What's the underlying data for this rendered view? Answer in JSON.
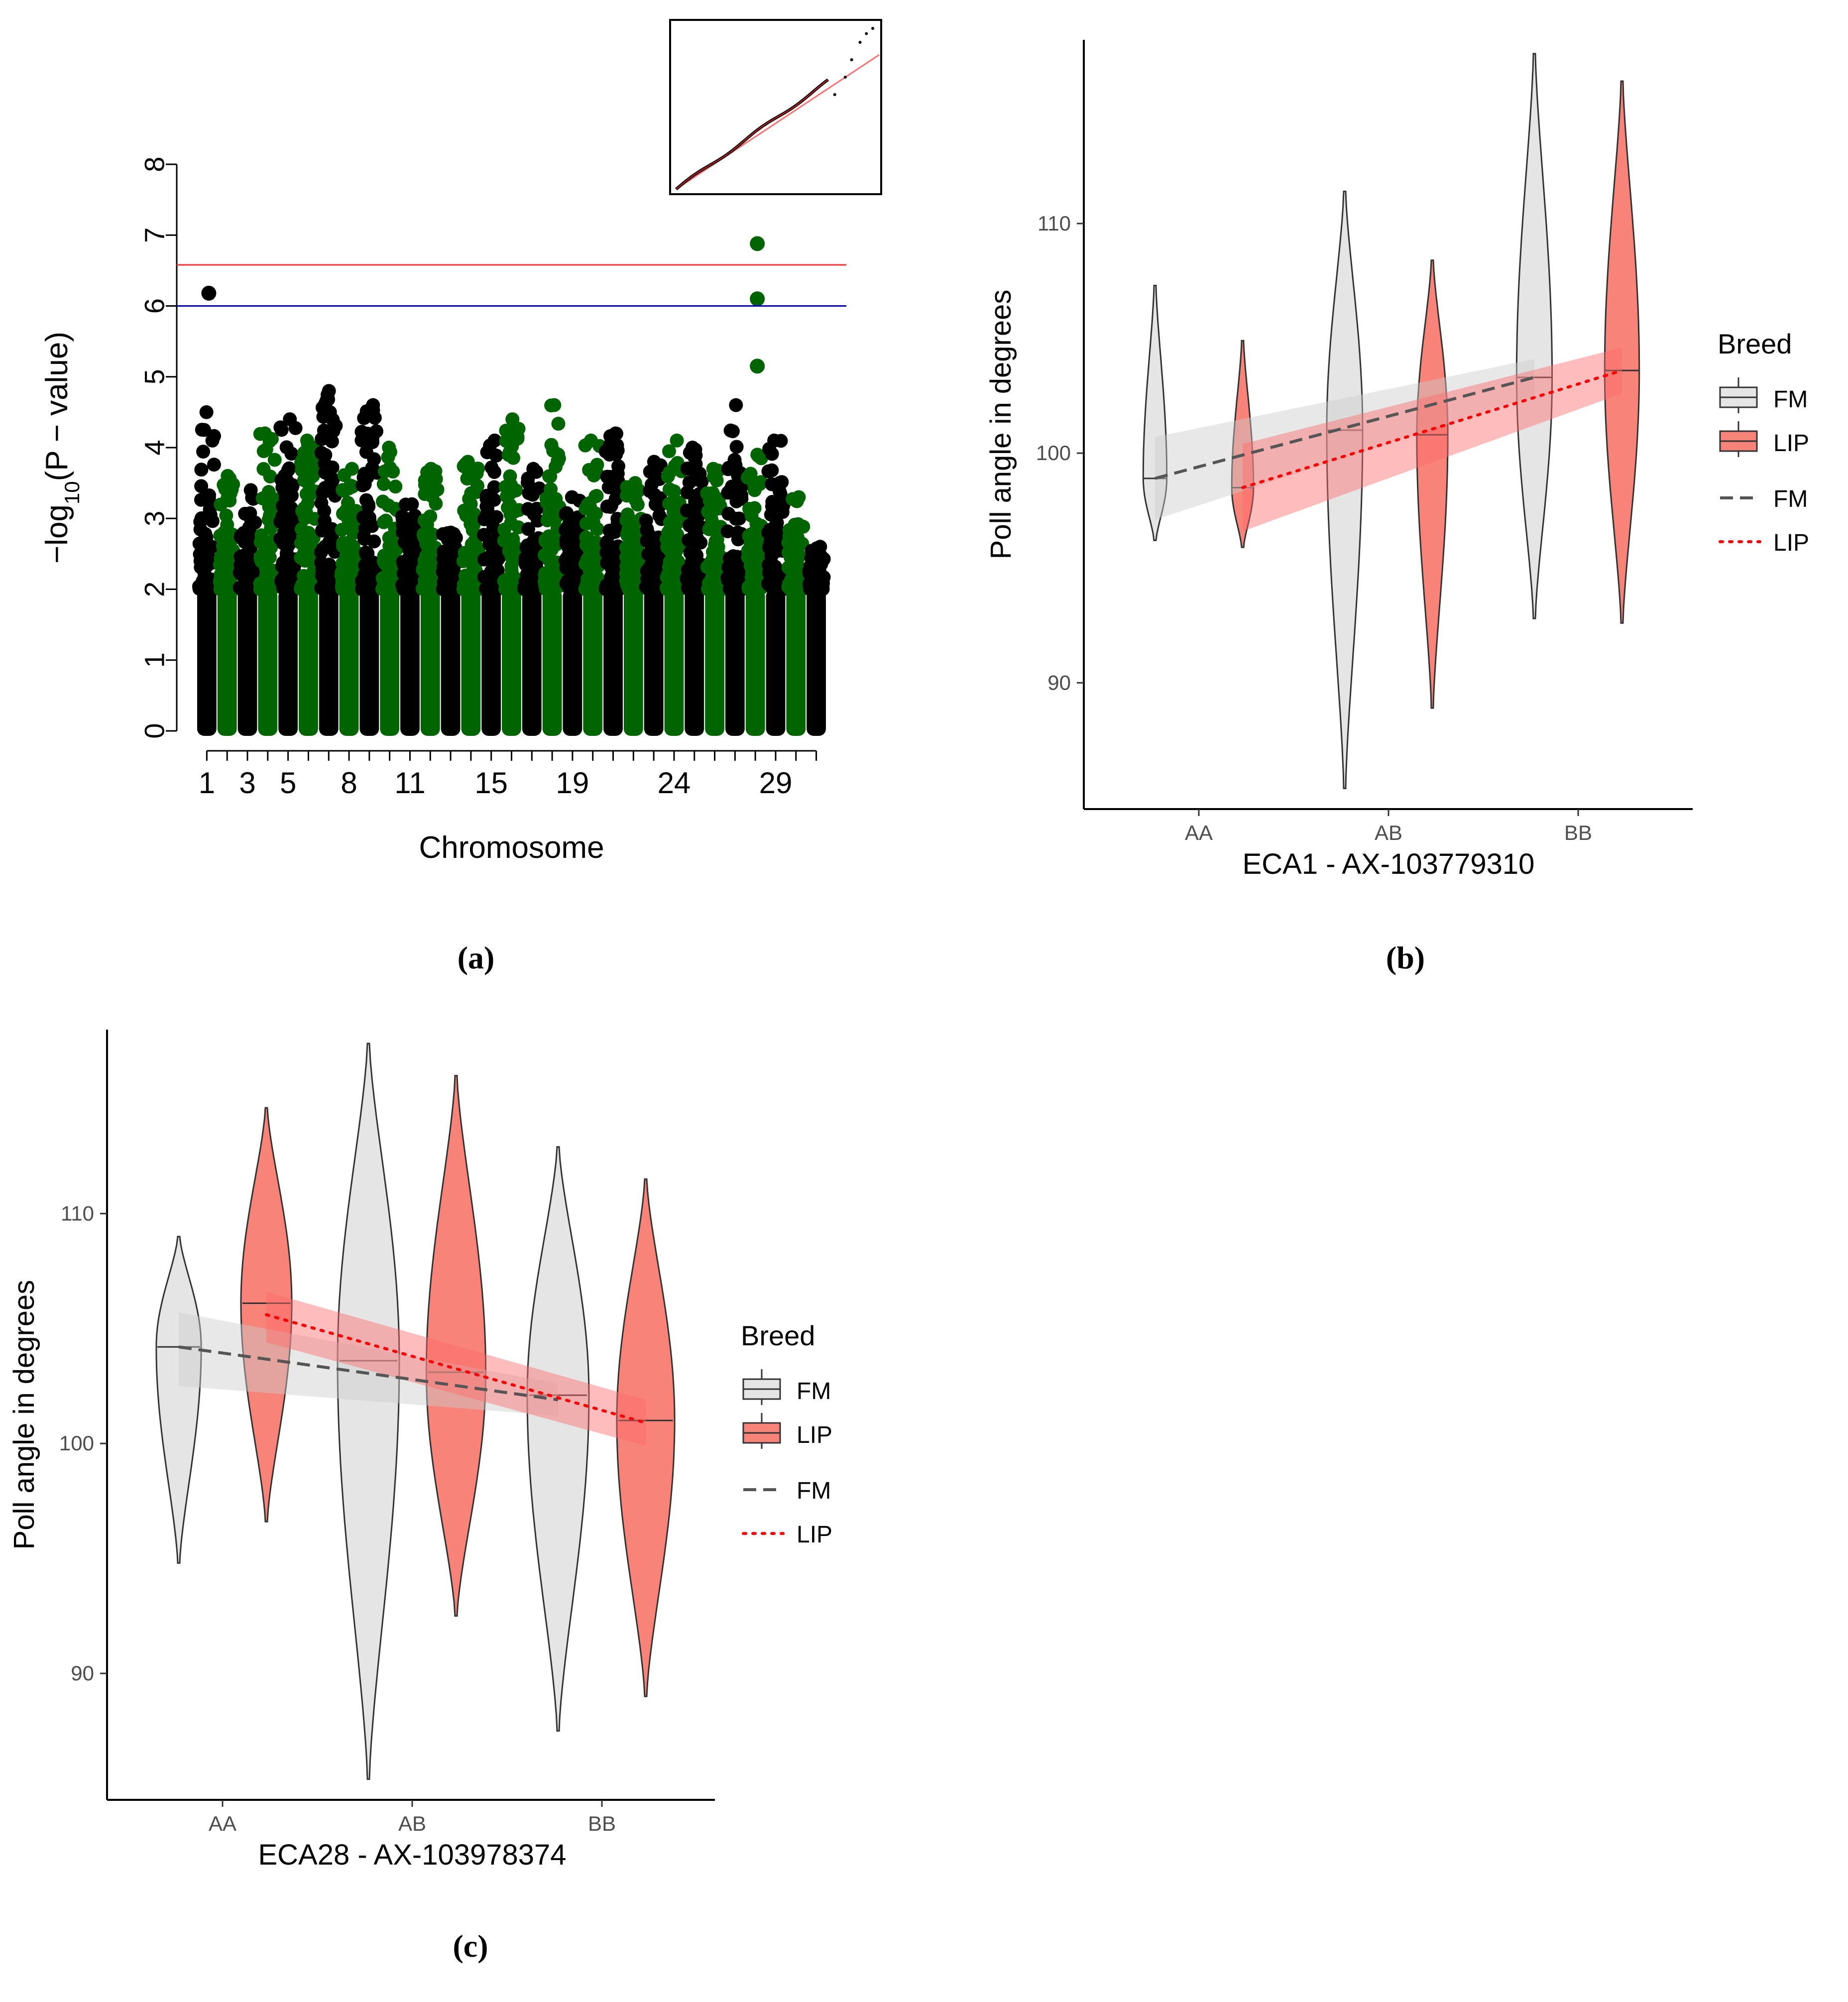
{
  "figure": {
    "panel_a_label": "(a)",
    "panel_b_label": "(b)",
    "panel_c_label": "(c)"
  },
  "chart_data": [
    {
      "id": "a",
      "type": "scatter",
      "subtype": "manhattan",
      "xlabel": "Chromosome",
      "ylabel_base": "−log",
      "ylabel_sub": "10",
      "ylabel_tail": "(P − value)",
      "ylim": [
        0,
        8
      ],
      "yticks": [
        0,
        1,
        2,
        3,
        4,
        5,
        6,
        7,
        8
      ],
      "xtick_labels": [
        "1",
        "3",
        "5",
        "8",
        "11",
        "15",
        "19",
        "24",
        "29"
      ],
      "xtick_chromosomes": [
        1,
        3,
        5,
        8,
        11,
        15,
        19,
        24,
        29
      ],
      "n_chromosomes": 31,
      "colors": {
        "odd": "#000000",
        "even": "#006400"
      },
      "thresholds": [
        {
          "value": 6.58,
          "color": "#ff3333"
        },
        {
          "value": 6.0,
          "color": "#0000cc"
        }
      ],
      "chromosome_max": [
        4.5,
        3.6,
        3.4,
        4.2,
        4.4,
        4.1,
        4.8,
        3.7,
        4.6,
        4.0,
        3.2,
        3.7,
        2.8,
        3.8,
        4.1,
        4.4,
        3.7,
        4.6,
        3.3,
        4.1,
        4.2,
        3.5,
        3.8,
        4.1,
        4.0,
        3.7,
        4.6,
        3.9,
        4.1,
        3.3,
        2.6
      ],
      "top_hits": [
        {
          "chromosome": 1,
          "value": 6.18
        },
        {
          "chromosome": 28,
          "value": 6.88
        },
        {
          "chromosome": 28,
          "value": 6.1
        },
        {
          "chromosome": 28,
          "value": 5.15
        }
      ],
      "inset": {
        "type": "qq",
        "note": "QQ plot inset: observed vs expected, near-diagonal with slight upper deviation"
      }
    },
    {
      "id": "b",
      "type": "violin",
      "xlabel": "ECA1 - AX-103779310",
      "ylabel": "Poll angle in degrees",
      "ylim": [
        84.5,
        118
      ],
      "yticks": [
        90,
        100,
        110
      ],
      "categories": [
        "AA",
        "AB",
        "BB"
      ],
      "legend_title": "Breed",
      "legend_entries": [
        "FM",
        "LIP"
      ],
      "legend_line_entries": [
        "FM",
        "LIP"
      ],
      "groups": [
        {
          "breed": "FM",
          "genotype": "AA",
          "min": 96.2,
          "max": 107.3,
          "median": 98.9
        },
        {
          "breed": "LIP",
          "genotype": "AA",
          "min": 95.9,
          "max": 104.9,
          "median": 98.5
        },
        {
          "breed": "FM",
          "genotype": "AB",
          "min": 85.4,
          "max": 111.4,
          "median": 101.0
        },
        {
          "breed": "LIP",
          "genotype": "AB",
          "min": 88.9,
          "max": 108.4,
          "median": 100.8
        },
        {
          "breed": "FM",
          "genotype": "BB",
          "min": 92.8,
          "max": 117.4,
          "median": 103.3
        },
        {
          "breed": "LIP",
          "genotype": "BB",
          "min": 92.6,
          "max": 116.2,
          "median": 103.6
        }
      ],
      "trend": [
        {
          "breed": "FM",
          "start": 98.9,
          "end": 103.3,
          "ci_start": [
            97.1,
            100.7
          ],
          "ci_end": [
            102.5,
            104.1
          ]
        },
        {
          "breed": "LIP",
          "start": 98.5,
          "end": 103.6,
          "ci_start": [
            96.6,
            100.4
          ],
          "ci_end": [
            102.6,
            104.6
          ]
        }
      ],
      "colors": {
        "FM": "#e5e5e5",
        "LIP": "#f88379",
        "FM_line": "#555555",
        "LIP_line": "#ff0000"
      }
    },
    {
      "id": "c",
      "type": "violin",
      "xlabel": "ECA28 - AX-103978374",
      "ylabel": "Poll angle in degrees",
      "ylim": [
        84.5,
        118
      ],
      "yticks": [
        90,
        100,
        110
      ],
      "categories": [
        "AA",
        "AB",
        "BB"
      ],
      "legend_title": "Breed",
      "legend_entries": [
        "FM",
        "LIP"
      ],
      "legend_line_entries": [
        "FM",
        "LIP"
      ],
      "groups": [
        {
          "breed": "FM",
          "genotype": "AA",
          "min": 94.8,
          "max": 109.0,
          "median": 104.2
        },
        {
          "breed": "LIP",
          "genotype": "AA",
          "min": 96.6,
          "max": 114.6,
          "median": 106.1
        },
        {
          "breed": "FM",
          "genotype": "AB",
          "min": 85.4,
          "max": 117.4,
          "median": 103.6
        },
        {
          "breed": "LIP",
          "genotype": "AB",
          "min": 92.5,
          "max": 116.0,
          "median": 103.1
        },
        {
          "breed": "FM",
          "genotype": "BB",
          "min": 87.5,
          "max": 112.9,
          "median": 102.1
        },
        {
          "breed": "LIP",
          "genotype": "BB",
          "min": 89.0,
          "max": 111.5,
          "median": 101.0
        }
      ],
      "trend": [
        {
          "breed": "FM",
          "start": 104.2,
          "end": 101.9,
          "ci_start": [
            102.5,
            105.7
          ],
          "ci_end": [
            101.2,
            102.6
          ]
        },
        {
          "breed": "LIP",
          "start": 105.6,
          "end": 100.9,
          "ci_start": [
            104.4,
            106.6
          ],
          "ci_end": [
            99.9,
            101.9
          ]
        }
      ],
      "colors": {
        "FM": "#e5e5e5",
        "LIP": "#f88379",
        "FM_line": "#555555",
        "LIP_line": "#ff0000"
      }
    }
  ]
}
